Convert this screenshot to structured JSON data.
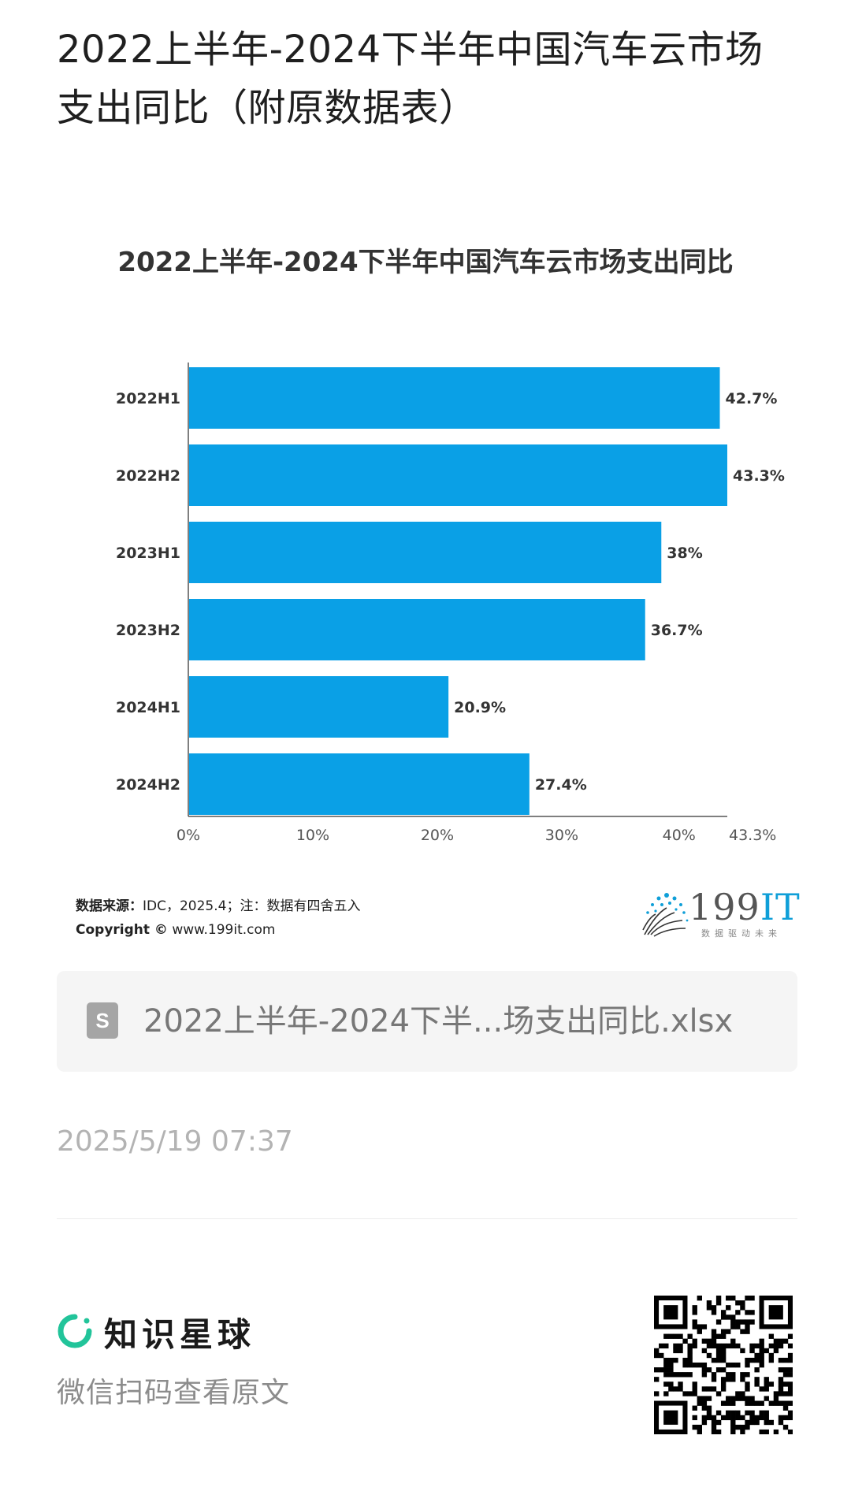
{
  "page": {
    "title": "2022上半年-2024下半年中国汽车云市场支出同比（附原数据表）"
  },
  "chart_data": {
    "type": "bar",
    "orientation": "horizontal",
    "title": "2022上半年-2024下半年中国汽车云市场支出同比",
    "categories": [
      "2022H1",
      "2022H2",
      "2023H1",
      "2023H2",
      "2024H1",
      "2024H2"
    ],
    "values": [
      42.7,
      43.3,
      38,
      36.7,
      20.9,
      27.4
    ],
    "value_labels": [
      "42.7%",
      "43.3%",
      "38%",
      "36.7%",
      "20.9%",
      "27.4%"
    ],
    "xlim": [
      0,
      43.3
    ],
    "x_ticks": [
      0,
      10,
      20,
      30,
      40,
      43.3
    ],
    "x_tick_labels": [
      "0%",
      "10%",
      "20%",
      "30%",
      "40%",
      "43.3%"
    ],
    "bar_color": "#0aa0e6",
    "grid": false,
    "legend": "none"
  },
  "source": {
    "label": "数据来源：",
    "text": "IDC，2025.4；注：数据有四舍五入",
    "copyright_label": "Copyright ©",
    "copyright_text": " www.199it.com"
  },
  "brand": {
    "name_num": "199",
    "name_it": "IT",
    "slogan": "数据驱动未来",
    "accent": "#0f9fd8"
  },
  "file": {
    "icon": "spreadsheet-icon",
    "icon_letter": "S",
    "name": "2022上半年-2024下半...场支出同比.xlsx"
  },
  "timestamp": "2025/5/19 07:37",
  "footer": {
    "app_name": "知识星球",
    "scan_hint": "微信扫码查看原文",
    "accent": "#22c49a"
  }
}
